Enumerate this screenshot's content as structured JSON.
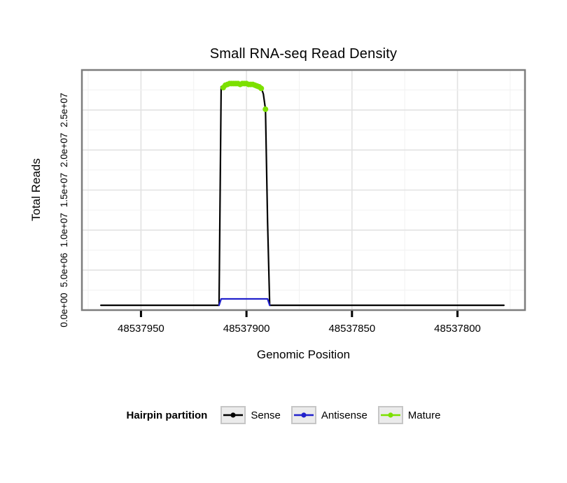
{
  "chart_data": {
    "type": "line",
    "title": "Small RNA-seq Read Density",
    "xlabel": "Genomic Position",
    "ylabel": "Total Reads",
    "x_axis_reversed": true,
    "x_range": [
      48537978,
      48537768
    ],
    "y_range": [
      0,
      30000000
    ],
    "x_ticks": [
      48537950,
      48537900,
      48537850,
      48537800
    ],
    "y_ticks": [
      {
        "value": 0,
        "label": "0.0e+00"
      },
      {
        "value": 5000000,
        "label": "5.0e+06"
      },
      {
        "value": 10000000,
        "label": "1.0e+07"
      },
      {
        "value": 15000000,
        "label": "1.5e+07"
      },
      {
        "value": 20000000,
        "label": "2.0e+07"
      },
      {
        "value": 25000000,
        "label": "2.5e+07"
      }
    ],
    "grid": {
      "x_step": 25,
      "x_major_step": 50,
      "y_step": 2500000,
      "y_major_step": 5000000
    },
    "legend": {
      "title": "Hairpin partition",
      "position": "bottom"
    },
    "series": [
      {
        "name": "Sense",
        "color": "#000000",
        "style": "line",
        "points": [
          [
            48537969,
            600000
          ],
          [
            48537913,
            600000
          ],
          [
            48537912,
            27900000
          ],
          [
            48537910,
            28200000
          ],
          [
            48537906,
            28300000
          ],
          [
            48537900,
            28300000
          ],
          [
            48537896,
            28200000
          ],
          [
            48537894,
            28100000
          ],
          [
            48537893,
            27800000
          ],
          [
            48537892,
            27000000
          ],
          [
            48537891,
            25100000
          ],
          [
            48537890,
            11000000
          ],
          [
            48537889,
            600000
          ],
          [
            48537778,
            600000
          ]
        ]
      },
      {
        "name": "Antisense",
        "color": "#2222cc",
        "style": "line",
        "points": [
          [
            48537913,
            600000
          ],
          [
            48537912,
            1400000
          ],
          [
            48537890,
            1400000
          ],
          [
            48537889,
            600000
          ]
        ]
      },
      {
        "name": "Mature",
        "color": "#7ce000",
        "style": "points",
        "points": [
          [
            48537911,
            27800000
          ],
          [
            48537910,
            28100000
          ],
          [
            48537909,
            28200000
          ],
          [
            48537908,
            28300000
          ],
          [
            48537907,
            28300000
          ],
          [
            48537906,
            28300000
          ],
          [
            48537905,
            28300000
          ],
          [
            48537904,
            28300000
          ],
          [
            48537903,
            28200000
          ],
          [
            48537902,
            28300000
          ],
          [
            48537901,
            28300000
          ],
          [
            48537900,
            28300000
          ],
          [
            48537899,
            28200000
          ],
          [
            48537898,
            28200000
          ],
          [
            48537897,
            28200000
          ],
          [
            48537896,
            28100000
          ],
          [
            48537895,
            28000000
          ],
          [
            48537894,
            27900000
          ],
          [
            48537893,
            27700000
          ],
          [
            48537891,
            25100000
          ]
        ]
      }
    ]
  }
}
